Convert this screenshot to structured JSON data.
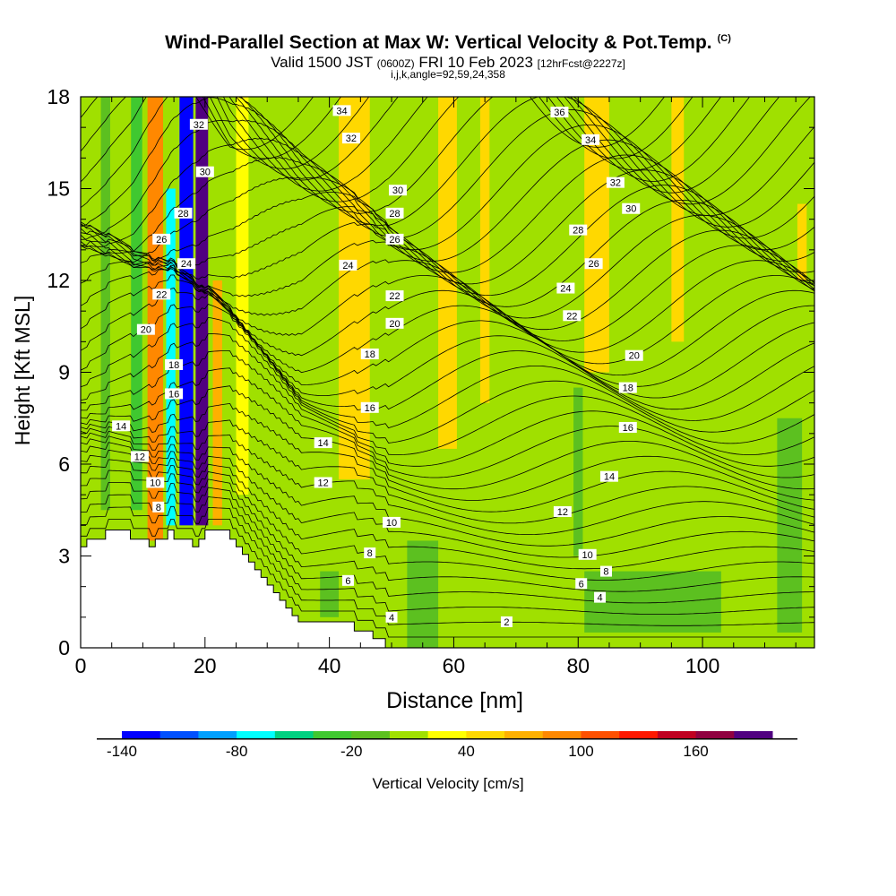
{
  "header": {
    "title": "Wind-Parallel Section at Max W: Vertical Velocity & Pot.Temp.",
    "copyright": "(C)",
    "valid_main": "Valid 1500 JST",
    "valid_utc": "(0600Z)",
    "valid_date": "FRI 10 Feb 2023",
    "forecast": "[12hrFcst@2227z]",
    "indices": "i,j,k,angle=92,59,24,358"
  },
  "chart_data": {
    "type": "heatmap",
    "xlabel": "Distance [nm]",
    "ylabel": "Height [Kft MSL]",
    "xlim": [
      0,
      118
    ],
    "ylim": [
      0,
      18
    ],
    "x_ticks": [
      0,
      20,
      40,
      60,
      80,
      100
    ],
    "y_ticks": [
      0,
      3,
      6,
      9,
      12,
      15,
      18
    ],
    "colorbar": {
      "label": "Vertical Velocity [cm/s]",
      "min": -140,
      "step": 20,
      "tick_labels": [
        "-140",
        "-80",
        "-20",
        "40",
        "100",
        "160"
      ],
      "tick_values": [
        -140,
        -80,
        -20,
        40,
        100,
        160
      ],
      "colors": [
        "#0000ff",
        "#0050ff",
        "#00a0ff",
        "#00ffff",
        "#00d080",
        "#40c830",
        "#5cc020",
        "#a0e000",
        "#ffff00",
        "#ffd800",
        "#ffb000",
        "#ff8800",
        "#ff5000",
        "#ff1800",
        "#c00020",
        "#900040",
        "#500080"
      ]
    },
    "terrain_profile_x": [
      0,
      1,
      1,
      4,
      4,
      8,
      8,
      11,
      11,
      12,
      12,
      14,
      14,
      15,
      15,
      18,
      18,
      19,
      19,
      20,
      20,
      24,
      24,
      25,
      25,
      26,
      26,
      27,
      27,
      28,
      28,
      29,
      29,
      30,
      30,
      31,
      31,
      32,
      32,
      33,
      33,
      34,
      34,
      35,
      35,
      36,
      36,
      37,
      37,
      38,
      38,
      39,
      39,
      40,
      40,
      41,
      41,
      42,
      42,
      43,
      43,
      44,
      44,
      45,
      45,
      46,
      46,
      47,
      47,
      48,
      48,
      49,
      49,
      50
    ],
    "terrain_profile_y": [
      3.3,
      3.3,
      3.55,
      3.55,
      3.85,
      3.85,
      3.55,
      3.55,
      3.3,
      3.3,
      3.55,
      3.55,
      3.85,
      3.85,
      3.55,
      3.55,
      3.3,
      3.3,
      3.55,
      3.55,
      3.85,
      3.85,
      3.55,
      3.55,
      3.3,
      3.3,
      3.05,
      3.05,
      2.8,
      2.8,
      2.55,
      2.55,
      2.3,
      2.3,
      2.05,
      2.05,
      1.8,
      1.8,
      1.55,
      1.55,
      1.3,
      1.3,
      1.05,
      1.05,
      0.85,
      0.85,
      0.85,
      0.85,
      0.85,
      0.85,
      0.85,
      0.85,
      0.85,
      0.85,
      0.85,
      0.85,
      0.85,
      0.85,
      0.85,
      0.85,
      0.85,
      0.85,
      0.55,
      0.55,
      0.55,
      0.55,
      0.55,
      0.55,
      0.3,
      0.3,
      0.3,
      0.3,
      0.0,
      0.0
    ],
    "velocity_features": [
      {
        "x": 4,
        "y0": 4.5,
        "y1": 18,
        "width": 1.5,
        "w": -20
      },
      {
        "x": 9,
        "y0": 4.5,
        "y1": 18,
        "width": 1.8,
        "w": -30
      },
      {
        "x": 12,
        "y0": 3.5,
        "y1": 18,
        "width": 2.5,
        "w": 80
      },
      {
        "x": 14.5,
        "y0": 4.0,
        "y1": 15,
        "width": 1.5,
        "w": -80
      },
      {
        "x": 17,
        "y0": 4.0,
        "y1": 18,
        "width": 2.2,
        "w": -140
      },
      {
        "x": 19.5,
        "y0": 4.0,
        "y1": 18,
        "width": 2.0,
        "w": 180
      },
      {
        "x": 22,
        "y0": 4.0,
        "y1": 12,
        "width": 1.5,
        "w": 60
      },
      {
        "x": 26,
        "y0": 5.0,
        "y1": 18,
        "width": 2.0,
        "w": 20
      },
      {
        "x": 44,
        "y0": 5.5,
        "y1": 18,
        "width": 5.0,
        "w": 40
      },
      {
        "x": 59,
        "y0": 6.5,
        "y1": 18,
        "width": 3.0,
        "w": 40
      },
      {
        "x": 65,
        "y0": 8.0,
        "y1": 18,
        "width": 1.5,
        "w": 40
      },
      {
        "x": 83,
        "y0": 9.0,
        "y1": 18,
        "width": 4.0,
        "w": 40
      },
      {
        "x": 80,
        "y0": 3.0,
        "y1": 8.5,
        "width": 1.5,
        "w": -20
      },
      {
        "x": 96,
        "y0": 10.0,
        "y1": 18,
        "width": 2.0,
        "w": 40
      },
      {
        "x": 116,
        "y0": 12.0,
        "y1": 14.5,
        "width": 1.5,
        "w": 40
      },
      {
        "x": 114,
        "y0": 0.5,
        "y1": 7.5,
        "width": 4.0,
        "w": -20
      },
      {
        "x": 92,
        "y0": 0.5,
        "y1": 2.5,
        "width": 22.0,
        "w": -20
      },
      {
        "x": 55,
        "y0": 0.0,
        "y1": 3.5,
        "width": 5.0,
        "w": -20
      },
      {
        "x": 40,
        "y0": 1.0,
        "y1": 2.5,
        "width": 3.0,
        "w": -20
      }
    ],
    "isentrope_labels": [
      {
        "x": 42,
        "y": 17.55,
        "label": "34"
      },
      {
        "x": 77,
        "y": 17.5,
        "label": "36"
      },
      {
        "x": 19,
        "y": 17.1,
        "label": "32"
      },
      {
        "x": 43.5,
        "y": 16.65,
        "label": "32"
      },
      {
        "x": 82,
        "y": 16.6,
        "label": "34"
      },
      {
        "x": 20,
        "y": 15.55,
        "label": "30"
      },
      {
        "x": 86,
        "y": 15.2,
        "label": "32"
      },
      {
        "x": 51,
        "y": 14.95,
        "label": "30"
      },
      {
        "x": 16.5,
        "y": 14.2,
        "label": "28"
      },
      {
        "x": 88.5,
        "y": 14.35,
        "label": "30"
      },
      {
        "x": 50.5,
        "y": 14.2,
        "label": "28"
      },
      {
        "x": 13,
        "y": 13.35,
        "label": "26"
      },
      {
        "x": 50.5,
        "y": 13.35,
        "label": "26"
      },
      {
        "x": 80,
        "y": 13.65,
        "label": "28"
      },
      {
        "x": 17,
        "y": 12.55,
        "label": "24"
      },
      {
        "x": 43,
        "y": 12.5,
        "label": "24"
      },
      {
        "x": 82.5,
        "y": 12.55,
        "label": "26"
      },
      {
        "x": 78,
        "y": 11.75,
        "label": "24"
      },
      {
        "x": 13,
        "y": 11.55,
        "label": "22"
      },
      {
        "x": 50.5,
        "y": 11.5,
        "label": "22"
      },
      {
        "x": 79,
        "y": 10.85,
        "label": "22"
      },
      {
        "x": 10.5,
        "y": 10.4,
        "label": "20"
      },
      {
        "x": 50.5,
        "y": 10.6,
        "label": "20"
      },
      {
        "x": 89,
        "y": 9.55,
        "label": "20"
      },
      {
        "x": 15,
        "y": 9.25,
        "label": "18"
      },
      {
        "x": 46.5,
        "y": 9.6,
        "label": "18"
      },
      {
        "x": 88,
        "y": 8.5,
        "label": "18"
      },
      {
        "x": 15,
        "y": 8.3,
        "label": "16"
      },
      {
        "x": 46.5,
        "y": 7.85,
        "label": "16"
      },
      {
        "x": 88,
        "y": 7.2,
        "label": "16"
      },
      {
        "x": 6.5,
        "y": 7.25,
        "label": "14"
      },
      {
        "x": 39,
        "y": 6.7,
        "label": "14"
      },
      {
        "x": 85,
        "y": 5.6,
        "label": "14"
      },
      {
        "x": 9.5,
        "y": 6.25,
        "label": "12"
      },
      {
        "x": 39,
        "y": 5.4,
        "label": "12"
      },
      {
        "x": 77.5,
        "y": 4.45,
        "label": "12"
      },
      {
        "x": 12,
        "y": 5.4,
        "label": "10"
      },
      {
        "x": 50,
        "y": 4.1,
        "label": "10"
      },
      {
        "x": 81.5,
        "y": 3.05,
        "label": "10"
      },
      {
        "x": 12.5,
        "y": 4.6,
        "label": "8"
      },
      {
        "x": 46.5,
        "y": 3.1,
        "label": "8"
      },
      {
        "x": 84.5,
        "y": 2.5,
        "label": "8"
      },
      {
        "x": 43,
        "y": 2.2,
        "label": "6"
      },
      {
        "x": 80.5,
        "y": 2.1,
        "label": "6"
      },
      {
        "x": 50,
        "y": 1.0,
        "label": "4"
      },
      {
        "x": 83.5,
        "y": 1.65,
        "label": "4"
      },
      {
        "x": 68.5,
        "y": 0.85,
        "label": "2"
      }
    ]
  }
}
